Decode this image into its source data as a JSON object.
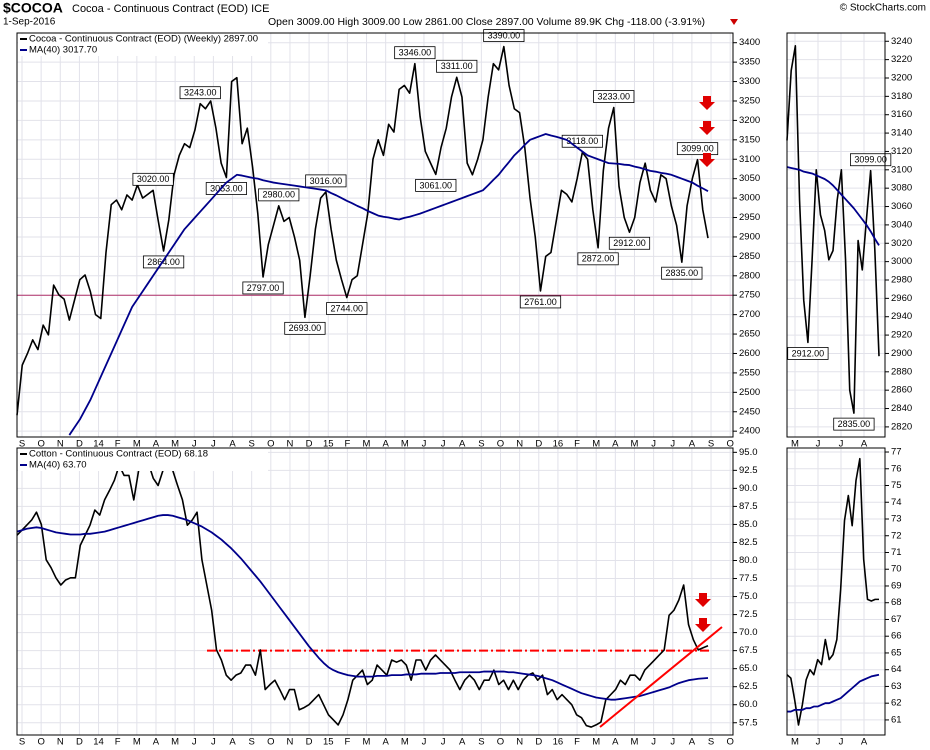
{
  "header": {
    "symbol": "$COCOA",
    "name": "Cocoa - Continuous Contract (EOD) ICE",
    "date": "1-Sep-2016",
    "quote": "Open 3009.00 High 3009.00 Low 2861.00 Close 2897.00 Volume 89.9K Chg -118.00 (-3.91%)",
    "credit": "© StockCharts.com"
  },
  "chart_data": [
    {
      "type": "line",
      "grid": true,
      "legend": "upper left",
      "ylim": [
        2385,
        3425
      ],
      "yticks": [
        2400,
        2450,
        2500,
        2550,
        2600,
        2650,
        2700,
        2750,
        2800,
        2850,
        2900,
        2950,
        3000,
        3050,
        3100,
        3150,
        3200,
        3250,
        3300,
        3350,
        3400
      ],
      "xticks": [
        "S",
        "O",
        "N",
        "D",
        "14",
        "F",
        "M",
        "A",
        "M",
        "J",
        "J",
        "A",
        "S",
        "O",
        "N",
        "D",
        "15",
        "F",
        "M",
        "A",
        "M",
        "J",
        "J",
        "A",
        "S",
        "O",
        "N",
        "D",
        "16",
        "F",
        "M",
        "A",
        "M",
        "J",
        "J",
        "A",
        "S",
        "O"
      ],
      "hlines": [
        {
          "value": 2750,
          "color": "#b0306a",
          "style": "solid"
        }
      ],
      "series": [
        {
          "name": "Cocoa - Continuous Contract (EOD) (Weekly) 2897.00",
          "color": "#000000",
          "values": [
            2441,
            2570,
            2600,
            2635,
            2610,
            2673,
            2648,
            2776,
            2751,
            2740,
            2686,
            2738,
            2790,
            2802,
            2760,
            2700,
            2690,
            2860,
            2983,
            2995,
            2970,
            3008,
            2995,
            3034,
            3000,
            3010,
            3020,
            2940,
            2864,
            2944,
            3060,
            3110,
            3140,
            3130,
            3176,
            3243,
            3230,
            3250,
            3180,
            3090,
            3053,
            3300,
            3310,
            3140,
            3180,
            3080,
            2960,
            2797,
            2880,
            2930,
            2980,
            2940,
            2950,
            2900,
            2840,
            2693,
            2800,
            2920,
            3000,
            3016,
            2920,
            2840,
            2790,
            2744,
            2790,
            2800,
            2880,
            2960,
            3100,
            3150,
            3110,
            3190,
            3170,
            3280,
            3290,
            3270,
            3346,
            3210,
            3120,
            3090,
            3061,
            3130,
            3180,
            3260,
            3311,
            3260,
            3090,
            3060,
            3100,
            3150,
            3260,
            3346,
            3330,
            3390,
            3290,
            3230,
            3220,
            3130,
            3000,
            2900,
            2761,
            2850,
            2860,
            2940,
            3020,
            3010,
            2990,
            3050,
            3118,
            3100,
            2970,
            2872,
            3070,
            3180,
            3233,
            3030,
            2950,
            2912,
            2950,
            3040,
            3090,
            3020,
            2990,
            3060,
            3050,
            2980,
            2930,
            2835,
            2980,
            3050,
            3099,
            2970,
            2897
          ],
          "value_labels": [
            null,
            null,
            null,
            null,
            null,
            null,
            null,
            null,
            null,
            null,
            null,
            null,
            null,
            null,
            null,
            null,
            null,
            null,
            null,
            null,
            null,
            null,
            null,
            null,
            null,
            null,
            "3020.00",
            null,
            "2864.00",
            null,
            null,
            null,
            null,
            null,
            null,
            "3243.00",
            null,
            null,
            null,
            null,
            "3053.00",
            null,
            null,
            null,
            null,
            null,
            null,
            "2797.00",
            null,
            null,
            "2980.00",
            null,
            null,
            null,
            null,
            "2693.00",
            null,
            null,
            null,
            "3016.00",
            null,
            null,
            null,
            "2744.00",
            null,
            null,
            null,
            null,
            null,
            null,
            null,
            null,
            null,
            null,
            null,
            null,
            "3346.00",
            null,
            null,
            null,
            "3061.00",
            null,
            null,
            null,
            "3311.00",
            null,
            null,
            null,
            null,
            null,
            null,
            null,
            null,
            "3390.00",
            null,
            null,
            null,
            null,
            null,
            null,
            "2761.00",
            null,
            null,
            null,
            null,
            null,
            null,
            null,
            "3118.00",
            null,
            null,
            "2872.00",
            null,
            null,
            "3233.00",
            null,
            null,
            "2912.00",
            null,
            null,
            null,
            null,
            null,
            null,
            null,
            null,
            null,
            "2835.00",
            null,
            null,
            "3099.00",
            null,
            null
          ]
        },
        {
          "name": "MA(40) 3017.70",
          "color": "#00008b",
          "values": [
            null,
            null,
            null,
            null,
            null,
            null,
            null,
            null,
            null,
            null,
            2390,
            2410,
            2430,
            2455,
            2480,
            2510,
            2540,
            2570,
            2600,
            2630,
            2660,
            2690,
            2720,
            2740,
            2760,
            2780,
            2800,
            2820,
            2840,
            2860,
            2880,
            2900,
            2920,
            2935,
            2950,
            2965,
            2980,
            2995,
            3010,
            3025,
            3040,
            3050,
            3060,
            3058,
            3055,
            3052,
            3050,
            3046,
            3043,
            3040,
            3038,
            3036,
            3034,
            3032,
            3030,
            3028,
            3026,
            3024,
            3022,
            3020,
            3013,
            3007,
            3000,
            2993,
            2987,
            2980,
            2974,
            2967,
            2961,
            2955,
            2952,
            2950,
            2947,
            2945,
            2949,
            2952,
            2956,
            2960,
            2965,
            2970,
            2975,
            2980,
            2985,
            2990,
            2995,
            3000,
            3005,
            3010,
            3015,
            3020,
            3033,
            3047,
            3060,
            3077,
            3093,
            3110,
            3123,
            3137,
            3150,
            3155,
            3160,
            3165,
            3161,
            3158,
            3154,
            3150,
            3140,
            3130,
            3120,
            3110,
            3105,
            3100,
            3095,
            3090,
            3089,
            3088,
            3086,
            3085,
            3081,
            3078,
            3074,
            3070,
            3068,
            3065,
            3063,
            3060,
            3055,
            3050,
            3045,
            3040,
            3032,
            3025,
            3017.7
          ]
        }
      ]
    },
    {
      "type": "line",
      "grid": true,
      "legend": "upper left",
      "ylim": [
        55.8,
        95.6
      ],
      "yticks": [
        57.5,
        {
          "value": 60,
          "label": "60.0"
        },
        62.5,
        {
          "value": 65,
          "label": "65.0"
        },
        67.5,
        {
          "value": 70,
          "label": "70.0"
        },
        72.5,
        {
          "value": 75,
          "label": "75.0"
        },
        77.5,
        {
          "value": 80,
          "label": "80.0"
        },
        82.5,
        {
          "value": 85,
          "label": "85.0"
        },
        87.5,
        {
          "value": 90,
          "label": "90.0"
        },
        92.5,
        {
          "value": 95,
          "label": "95.0"
        }
      ],
      "xticks": [
        "S",
        "O",
        "N",
        "D",
        "14",
        "F",
        "M",
        "A",
        "M",
        "J",
        "J",
        "A",
        "S",
        "O",
        "N",
        "D",
        "15",
        "F",
        "M",
        "A",
        "M",
        "J",
        "J",
        "A",
        "S",
        "O",
        "N",
        "D",
        "16",
        "F",
        "M",
        "A",
        "M",
        "J",
        "J",
        "A",
        "S",
        "O"
      ],
      "hlines": [
        {
          "value": 67.5,
          "color": "#ff0000",
          "style": "dashdot"
        }
      ],
      "series": [
        {
          "name": "Cotton - Continuous Contract (EOD) 68.18",
          "color": "#000000",
          "values": [
            83.5,
            84.2,
            84.9,
            85.6,
            86.7,
            85.0,
            80.1,
            79.0,
            77.6,
            76.6,
            77.3,
            77.6,
            77.6,
            82.1,
            83.5,
            84.9,
            87.0,
            86.3,
            88.4,
            89.7,
            91.1,
            93.2,
            91.8,
            91.8,
            88.4,
            92.5,
            93.9,
            93.5,
            91.4,
            90.4,
            92.5,
            93.9,
            92.5,
            90.4,
            88.4,
            84.9,
            85.6,
            86.7,
            80.1,
            76.6,
            73.1,
            67.6,
            66.2,
            64.1,
            63.4,
            64.1,
            64.4,
            65.5,
            65.5,
            64.1,
            67.6,
            62.1,
            62.8,
            63.4,
            62.1,
            60.7,
            62.1,
            62.1,
            59.3,
            59.6,
            60.0,
            60.7,
            61.4,
            60.0,
            58.6,
            57.9,
            57.2,
            58.6,
            60.7,
            63.4,
            64.1,
            64.8,
            62.8,
            63.4,
            65.5,
            64.8,
            64.1,
            66.2,
            65.9,
            66.2,
            65.5,
            63.4,
            66.2,
            66.2,
            64.8,
            66.2,
            66.9,
            66.2,
            65.5,
            64.8,
            63.4,
            62.1,
            63.4,
            64.1,
            63.4,
            62.1,
            63.4,
            63.4,
            64.8,
            62.8,
            63.4,
            62.1,
            63.4,
            62.1,
            63.4,
            64.1,
            64.4,
            63.4,
            64.1,
            61.4,
            62.1,
            60.7,
            61.4,
            60.7,
            60.0,
            58.6,
            58.2,
            57.1,
            56.9,
            57.2,
            57.6,
            60.7,
            61.4,
            62.1,
            63.4,
            62.8,
            64.1,
            64.1,
            63.4,
            64.8,
            65.5,
            66.2,
            66.9,
            67.6,
            72.4,
            73.1,
            74.5,
            76.6,
            71.1,
            69.0,
            67.6,
            67.9,
            68.18
          ]
        },
        {
          "name": "MA(40) 63.70",
          "color": "#00008b",
          "values": [
            84.0,
            84.2,
            84.4,
            84.5,
            84.6,
            84.5,
            84.3,
            84.1,
            83.9,
            83.8,
            83.7,
            83.6,
            83.6,
            83.6,
            83.7,
            83.7,
            83.8,
            83.9,
            84.0,
            84.2,
            84.4,
            84.6,
            84.8,
            85.0,
            85.2,
            85.4,
            85.6,
            85.8,
            86.0,
            86.2,
            86.3,
            86.3,
            86.2,
            86.0,
            85.8,
            85.6,
            85.3,
            85.0,
            84.7,
            84.3,
            83.9,
            83.4,
            82.9,
            82.3,
            81.7,
            81.0,
            80.3,
            79.5,
            78.7,
            77.9,
            77.1,
            76.2,
            75.3,
            74.4,
            73.5,
            72.6,
            71.7,
            70.8,
            69.9,
            69.0,
            68.1,
            67.3,
            66.5,
            65.8,
            65.2,
            64.8,
            64.5,
            64.3,
            64.1,
            64.0,
            63.9,
            63.9,
            63.9,
            63.9,
            64.0,
            64.0,
            64.0,
            64.1,
            64.1,
            64.1,
            64.2,
            64.2,
            64.2,
            64.3,
            64.3,
            64.3,
            64.3,
            64.4,
            64.4,
            64.4,
            64.4,
            64.5,
            64.5,
            64.5,
            64.5,
            64.5,
            64.6,
            64.6,
            64.6,
            64.6,
            64.6,
            64.5,
            64.5,
            64.4,
            64.3,
            64.2,
            64.1,
            64.0,
            63.8,
            63.6,
            63.4,
            63.1,
            62.8,
            62.5,
            62.2,
            61.9,
            61.6,
            61.4,
            61.2,
            61.0,
            60.9,
            60.8,
            60.7,
            60.7,
            60.8,
            60.9,
            61.0,
            61.1,
            61.2,
            61.4,
            61.6,
            61.8,
            62.0,
            62.2,
            62.4,
            62.7,
            63.0,
            63.2,
            63.4,
            63.5,
            63.6,
            63.65,
            63.7
          ]
        }
      ]
    },
    {
      "type": "line",
      "grid": true,
      "ylim": [
        2809,
        3249
      ],
      "yticks": [
        2820,
        2840,
        2860,
        2880,
        2900,
        2920,
        2940,
        2960,
        2980,
        3000,
        3020,
        3040,
        3060,
        3080,
        3100,
        3120,
        3140,
        3160,
        3180,
        3200,
        3220,
        3240
      ],
      "xticks": [
        "M",
        "J",
        "J",
        "A"
      ],
      "series": [
        {
          "color": "#000000",
          "values": [
            3132,
            3208,
            3235,
            3067,
            2958,
            2912,
            3002,
            3100,
            3051,
            3034,
            3002,
            3012,
            3067,
            3100,
            3002,
            2860,
            2835,
            3023,
            2991,
            3046,
            3099,
            3013,
            2897
          ],
          "value_labels": [
            null,
            null,
            null,
            null,
            null,
            "2912.00",
            null,
            null,
            null,
            null,
            null,
            null,
            null,
            null,
            null,
            null,
            "2835.00",
            null,
            null,
            null,
            "3099.00",
            null,
            null
          ]
        },
        {
          "color": "#00008b",
          "values": [
            3103,
            3102,
            3101,
            3100,
            3098,
            3097,
            3096,
            3094,
            3092,
            3090,
            3087,
            3083,
            3078,
            3073,
            3068,
            3063,
            3058,
            3052,
            3046,
            3040,
            3033,
            3025,
            3017.7
          ]
        }
      ]
    },
    {
      "type": "line",
      "grid": true,
      "ylim": [
        60.1,
        77.24
      ],
      "yticks": [
        61,
        62,
        63,
        64,
        65,
        66,
        67,
        68,
        69,
        70,
        71,
        72,
        73,
        74,
        75,
        76,
        77
      ],
      "xticks": [
        "M",
        "J",
        "J",
        "A"
      ],
      "series": [
        {
          "color": "#000000",
          "values": [
            63.7,
            63.5,
            62.2,
            60.7,
            61.9,
            63.4,
            64.0,
            63.7,
            64.6,
            64.3,
            65.8,
            64.6,
            64.9,
            65.8,
            68.8,
            72.9,
            74.4,
            72.6,
            75.3,
            76.6,
            70.6,
            68.2,
            68.1,
            68.2,
            68.2
          ]
        },
        {
          "color": "#00008b",
          "values": [
            61.5,
            61.5,
            61.6,
            61.6,
            61.6,
            61.7,
            61.7,
            61.8,
            61.8,
            61.9,
            62.0,
            62.0,
            62.1,
            62.2,
            62.3,
            62.5,
            62.7,
            62.9,
            63.1,
            63.3,
            63.4,
            63.5,
            63.6,
            63.65,
            63.7
          ]
        }
      ]
    }
  ]
}
